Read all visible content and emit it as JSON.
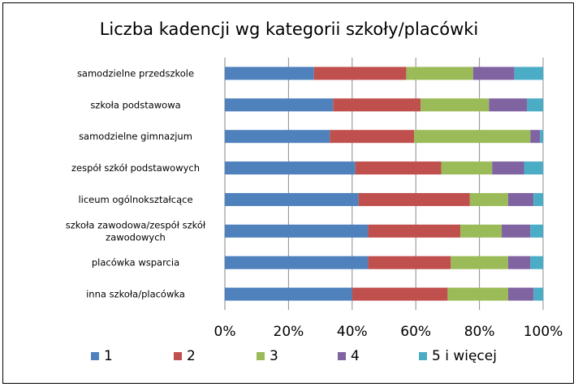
{
  "chart_data": {
    "type": "bar",
    "orientation": "horizontal",
    "stacked": "percent",
    "title": "Liczba kadencji wg kategorii szkoły/placówki",
    "categories": [
      "samodzielne przedszkole",
      "szkoła podstawowa",
      "samodzielne gimnazjum",
      "zespół szkół podstawowych",
      "liceum ogólnokształcące",
      "szkoła zawodowa/zespół szkół zawodowych",
      "placówka wsparcia",
      "inna szkoła/placówka"
    ],
    "series": [
      {
        "name": "1",
        "color": "#4F81BD",
        "values": [
          28,
          34,
          33,
          41,
          42,
          45,
          45,
          40
        ]
      },
      {
        "name": "2",
        "color": "#C0504D",
        "values": [
          29,
          27.5,
          26.5,
          27,
          35,
          29,
          26,
          30
        ]
      },
      {
        "name": "3",
        "color": "#9BBB59",
        "values": [
          21,
          21.5,
          36.5,
          16,
          12,
          13,
          18,
          19
        ]
      },
      {
        "name": "4",
        "color": "#8064A2",
        "values": [
          13,
          12,
          3,
          10,
          8,
          9,
          7,
          8
        ]
      },
      {
        "name": "5 i więcej",
        "color": "#4BACC6",
        "values": [
          9,
          5,
          1,
          6,
          3,
          4,
          4,
          3
        ]
      }
    ],
    "xlim": [
      0,
      100
    ],
    "x_ticks": [
      "0%",
      "20%",
      "40%",
      "60%",
      "80%",
      "100%"
    ],
    "legend_position": "bottom",
    "grid": "vertical major gridlines"
  }
}
